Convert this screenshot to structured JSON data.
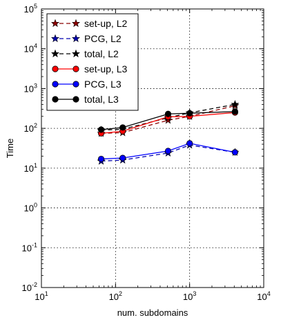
{
  "chart_data": {
    "type": "line",
    "xlabel": "num. subdomains",
    "ylabel": "Time",
    "xscale": "log",
    "yscale": "log",
    "xlim": [
      10,
      10000
    ],
    "ylim": [
      0.01,
      100000
    ],
    "grid": true,
    "legend_position": "top-left",
    "x_ticks": [
      {
        "value": 10,
        "base": "10",
        "exp": "1"
      },
      {
        "value": 100,
        "base": "10",
        "exp": "2"
      },
      {
        "value": 1000,
        "base": "10",
        "exp": "3"
      },
      {
        "value": 10000,
        "base": "10",
        "exp": "4"
      }
    ],
    "y_ticks": [
      {
        "value": 0.01,
        "base": "10",
        "exp": "-2"
      },
      {
        "value": 0.1,
        "base": "10",
        "exp": "-1"
      },
      {
        "value": 1,
        "base": "10",
        "exp": "0"
      },
      {
        "value": 10,
        "base": "10",
        "exp": "1"
      },
      {
        "value": 100,
        "base": "10",
        "exp": "2"
      },
      {
        "value": 1000,
        "base": "10",
        "exp": "3"
      },
      {
        "value": 10000,
        "base": "10",
        "exp": "4"
      },
      {
        "value": 100000,
        "base": "10",
        "exp": "5"
      }
    ],
    "series": [
      {
        "name": "set-up, L2",
        "color": "#8b0000",
        "dash": true,
        "marker": "star",
        "x": [
          64,
          125,
          512,
          1000,
          4096
        ],
        "y": [
          75,
          78,
          160,
          200,
          370
        ]
      },
      {
        "name": "PCG, L2",
        "color": "#0000b0",
        "dash": true,
        "marker": "star",
        "x": [
          64,
          125,
          512,
          1000,
          4096
        ],
        "y": [
          15,
          16,
          24,
          38,
          25
        ]
      },
      {
        "name": "total, L2",
        "color": "#000000",
        "dash": true,
        "marker": "star",
        "x": [
          64,
          125,
          512,
          1000,
          4096
        ],
        "y": [
          90,
          95,
          185,
          245,
          400
        ]
      },
      {
        "name": "set-up, L3",
        "color": "#ff0000",
        "dash": false,
        "marker": "circle",
        "x": [
          64,
          125,
          512,
          1000,
          4096
        ],
        "y": [
          75,
          85,
          195,
          200,
          250
        ]
      },
      {
        "name": "PCG, L3",
        "color": "#0000ff",
        "dash": false,
        "marker": "circle",
        "x": [
          64,
          125,
          512,
          1000,
          4096
        ],
        "y": [
          17,
          18,
          27,
          42,
          25
        ]
      },
      {
        "name": "total, L3",
        "color": "#000000",
        "dash": false,
        "marker": "circle",
        "x": [
          64,
          125,
          512,
          1000,
          4096
        ],
        "y": [
          93,
          105,
          230,
          240,
          265
        ]
      }
    ]
  }
}
